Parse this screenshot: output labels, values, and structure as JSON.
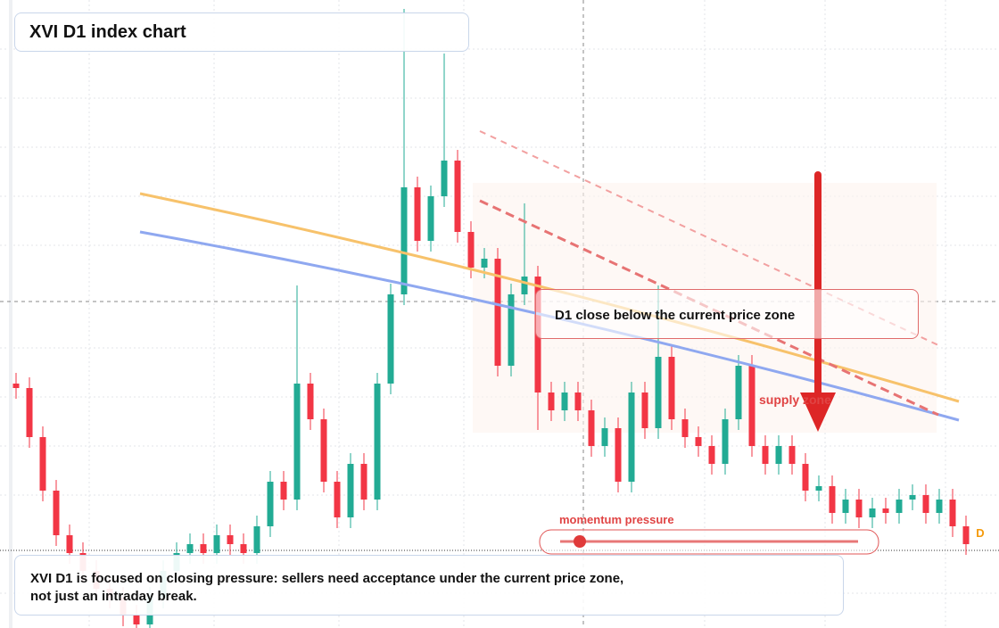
{
  "header": {
    "title": "XVI D1 index chart"
  },
  "chart_data": {
    "type": "candlestick",
    "ylim": [
      0,
      704
    ],
    "up_color": "#22ab94",
    "down_color": "#f23645",
    "open": [
      274,
      269,
      214,
      154,
      104,
      84,
      64,
      44,
      34,
      14,
      4,
      34,
      64,
      84,
      94,
      84,
      104,
      94,
      84,
      114,
      164,
      144,
      274,
      234,
      164,
      124,
      184,
      144,
      274,
      374,
      494,
      434,
      484,
      524,
      444,
      404,
      414,
      294,
      374,
      394,
      264,
      244,
      264,
      244,
      204,
      224,
      164,
      264,
      224,
      304,
      234,
      214,
      204,
      184,
      234,
      294,
      204,
      184,
      204,
      184,
      154,
      159,
      129,
      144,
      124,
      134,
      129,
      144,
      149,
      129,
      144,
      114
    ],
    "high": [
      286,
      281,
      226,
      166,
      116,
      96,
      76,
      56,
      46,
      26,
      46,
      76,
      96,
      106,
      106,
      116,
      116,
      106,
      126,
      176,
      176,
      384,
      286,
      246,
      176,
      196,
      196,
      286,
      386,
      694,
      506,
      496,
      644,
      536,
      456,
      426,
      426,
      386,
      476,
      406,
      276,
      276,
      276,
      256,
      236,
      236,
      276,
      276,
      384,
      316,
      246,
      226,
      216,
      246,
      306,
      306,
      216,
      216,
      216,
      196,
      171,
      171,
      156,
      156,
      146,
      146,
      156,
      161,
      161,
      156,
      156,
      126
    ],
    "low": [
      257,
      202,
      142,
      92,
      72,
      52,
      32,
      22,
      2,
      0,
      0,
      22,
      52,
      72,
      72,
      72,
      82,
      72,
      72,
      102,
      132,
      132,
      222,
      152,
      112,
      112,
      132,
      132,
      262,
      362,
      422,
      422,
      472,
      432,
      392,
      392,
      282,
      282,
      362,
      222,
      232,
      232,
      232,
      192,
      192,
      152,
      152,
      212,
      212,
      222,
      202,
      192,
      172,
      172,
      222,
      192,
      172,
      172,
      172,
      142,
      142,
      117,
      117,
      112,
      112,
      117,
      117,
      132,
      117,
      117,
      102,
      82
    ],
    "close": [
      269,
      214,
      154,
      104,
      84,
      64,
      44,
      34,
      14,
      4,
      34,
      64,
      84,
      94,
      84,
      104,
      94,
      84,
      114,
      164,
      144,
      274,
      234,
      164,
      124,
      184,
      144,
      274,
      374,
      494,
      434,
      484,
      524,
      444,
      404,
      414,
      294,
      374,
      394,
      264,
      244,
      264,
      244,
      204,
      224,
      164,
      264,
      224,
      304,
      234,
      214,
      204,
      184,
      234,
      294,
      204,
      184,
      204,
      184,
      154,
      159,
      129,
      144,
      124,
      134,
      129,
      144,
      149,
      129,
      144,
      114,
      94
    ]
  },
  "annotations": {
    "zone_label": "D1 close below the current price zone",
    "supply": "supply zone",
    "momentum": "momentum pressure",
    "marker": "D"
  },
  "note": {
    "lines": [
      "XVI D1 is focused on closing pressure: sellers need acceptance under the current price zone,",
      "not just an intraday break."
    ]
  }
}
